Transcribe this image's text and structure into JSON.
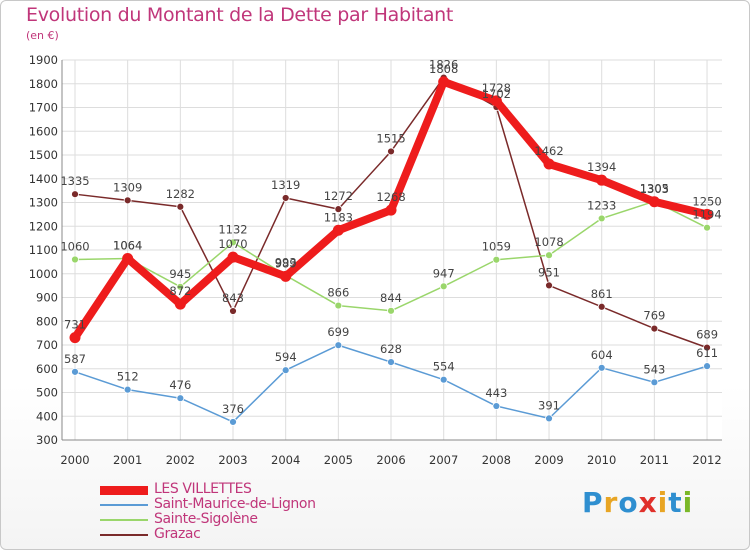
{
  "header": {
    "title": "Evolution du Montant de la Dette par Habitant",
    "subtitle": "(en €)"
  },
  "brand": {
    "text": "Proxiti",
    "letter_colors": [
      "#2f8fd0",
      "#e8a524",
      "#2f8fd0",
      "#e0302a",
      "#e8a524",
      "#2f8fd0",
      "#7ab829"
    ]
  },
  "chart_data": {
    "type": "line",
    "x": [
      "2000",
      "2001",
      "2002",
      "2003",
      "2004",
      "2005",
      "2006",
      "2007",
      "2008",
      "2009",
      "2010",
      "2011",
      "2012"
    ],
    "ylim": [
      300,
      1900
    ],
    "yticks": [
      "300",
      "400",
      "500",
      "600",
      "700",
      "800",
      "900",
      "1000",
      "1100",
      "1200",
      "1300",
      "1400",
      "1500",
      "1600",
      "1700",
      "1800",
      "1900"
    ],
    "grid": true,
    "legend_position": "bottom-left",
    "series": [
      {
        "name": "LES VILLETTES",
        "color": "#ee1c1c",
        "values": [
          731,
          1064,
          872,
          1070,
          989,
          1183,
          1268,
          1808,
          1728,
          1462,
          1394,
          1303,
          1250
        ]
      },
      {
        "name": "Saint-Maurice-de-Lignon",
        "color": "#5b9bd5",
        "values": [
          587,
          512,
          476,
          376,
          594,
          699,
          628,
          554,
          443,
          391,
          604,
          543,
          611
        ]
      },
      {
        "name": "Sainte-Sigolène",
        "color": "#9ad66b",
        "values": [
          1060,
          1064,
          945,
          1132,
          993,
          866,
          844,
          947,
          1059,
          1078,
          1233,
          1305,
          1194
        ]
      },
      {
        "name": "Grazac",
        "color": "#7a2a2a",
        "values": [
          1335,
          1309,
          1282,
          843,
          1319,
          1272,
          1515,
          1826,
          1702,
          951,
          861,
          769,
          689
        ]
      }
    ]
  }
}
